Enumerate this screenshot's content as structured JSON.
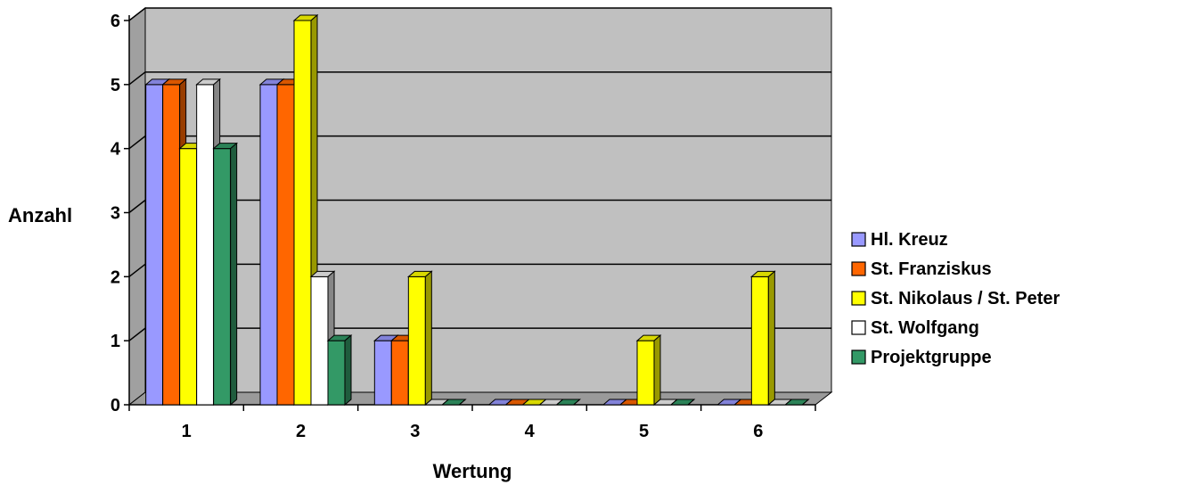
{
  "chart_data": {
    "type": "bar",
    "categories": [
      "1",
      "2",
      "3",
      "4",
      "5",
      "6"
    ],
    "series": [
      {
        "name": "Hl. Kreuz",
        "color": "#9999ff",
        "values": [
          5,
          5,
          1,
          0,
          0,
          0
        ]
      },
      {
        "name": "St. Franziskus",
        "color": "#ff6600",
        "values": [
          5,
          5,
          1,
          0,
          0,
          0
        ]
      },
      {
        "name": "St. Nikolaus / St. Peter",
        "color": "#ffff00",
        "values": [
          4,
          6,
          2,
          0,
          1,
          2
        ]
      },
      {
        "name": "St. Wolfgang",
        "color": "#ffffff",
        "values": [
          5,
          2,
          0,
          0,
          0,
          0
        ]
      },
      {
        "name": "Projektgruppe",
        "color": "#339966",
        "values": [
          4,
          1,
          0,
          0,
          0,
          0
        ]
      }
    ],
    "xlabel": "Wertung",
    "ylabel": "Anzahl",
    "ylim": [
      0,
      6
    ],
    "yticks": [
      "0",
      "1",
      "2",
      "3",
      "4",
      "5",
      "6"
    ],
    "grid": true,
    "legend": "right",
    "style": "3d-clustered-column",
    "wall_color": "#c0c0c0"
  }
}
